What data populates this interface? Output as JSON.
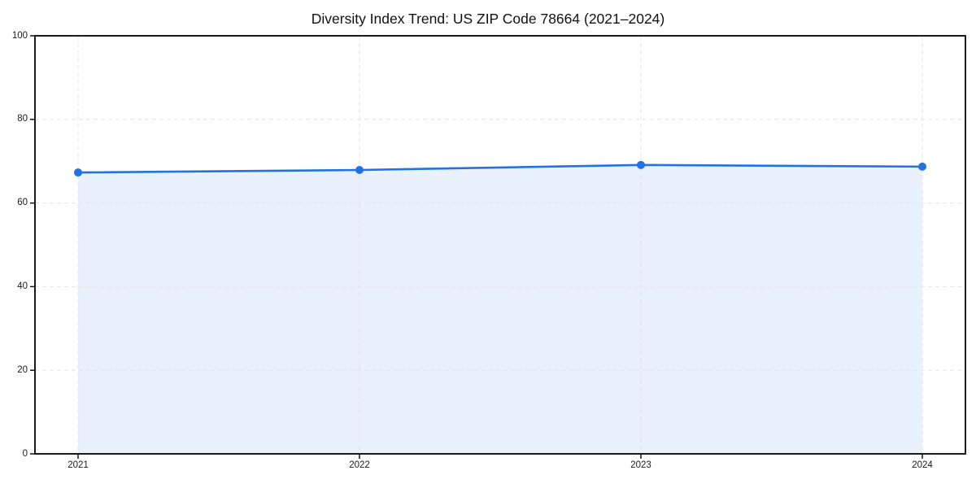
{
  "chart_data": {
    "type": "area",
    "title": "Diversity Index Trend: US ZIP Code 78664 (2021–2024)",
    "x": [
      "2021",
      "2022",
      "2023",
      "2024"
    ],
    "series": [
      {
        "name": "Diversity Index",
        "values": [
          67.3,
          67.9,
          69.1,
          68.7
        ]
      }
    ],
    "xlabel": "",
    "ylabel": "",
    "ylim": [
      0,
      100
    ],
    "yticks": [
      0,
      20,
      40,
      60,
      80,
      100
    ],
    "grid": true,
    "grid_style": "dashed",
    "legend_position": "none",
    "marker": "circle",
    "colors": {
      "line": "#2272e3",
      "marker": "#2272e3",
      "fill": "#e9f1fc",
      "grid": "#e4e4e4",
      "spine": "#000000",
      "tick_label": "#1a1a1a",
      "title": "#111111",
      "background": "#ffffff"
    }
  }
}
